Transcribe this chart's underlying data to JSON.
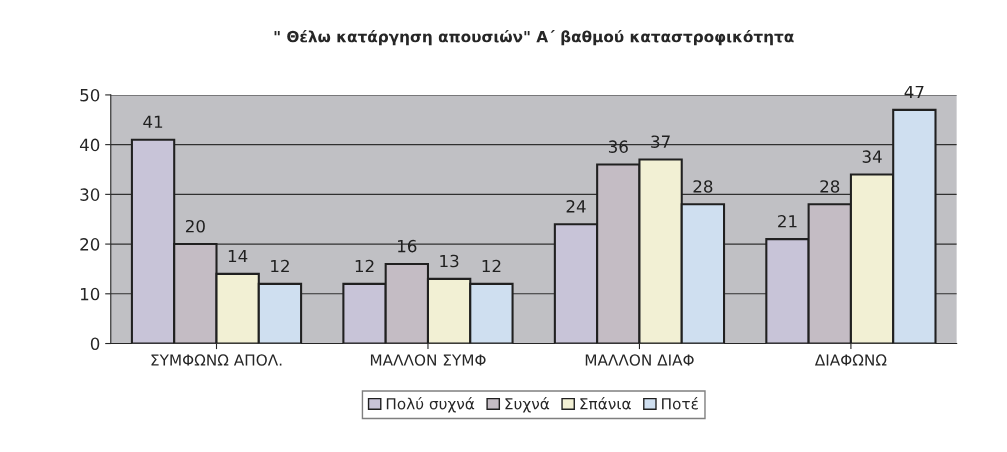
{
  "chart_data": {
    "type": "bar",
    "title": "\" Θέλω κατάργηση απουσιών\" Α΄ βαθμού καταστροφικότητα",
    "categories": [
      "ΣΥΜΦΩΝΩ ΑΠΟΛ.",
      "ΜΑΛΛΟΝ ΣΥΜΦ",
      "ΜΑΛΛΟΝ ΔΙΑΦ",
      "ΔΙΑΦΩΝΩ"
    ],
    "series": [
      {
        "name": "Πολύ συχνά",
        "color": "#c8c4d8",
        "values": [
          41,
          12,
          24,
          21
        ]
      },
      {
        "name": "Συχνά",
        "color": "#c4bcc4",
        "values": [
          20,
          16,
          36,
          28
        ]
      },
      {
        "name": "Σπάνια",
        "color": "#f2f0d4",
        "values": [
          14,
          13,
          37,
          34
        ]
      },
      {
        "name": "Ποτέ",
        "color": "#cfdff0",
        "values": [
          12,
          12,
          28,
          47
        ]
      }
    ],
    "ylim": [
      0,
      50
    ],
    "yticks": [
      0,
      10,
      20,
      30,
      40,
      50
    ],
    "grid": "y",
    "legend": "bottom",
    "data_labels": true
  }
}
